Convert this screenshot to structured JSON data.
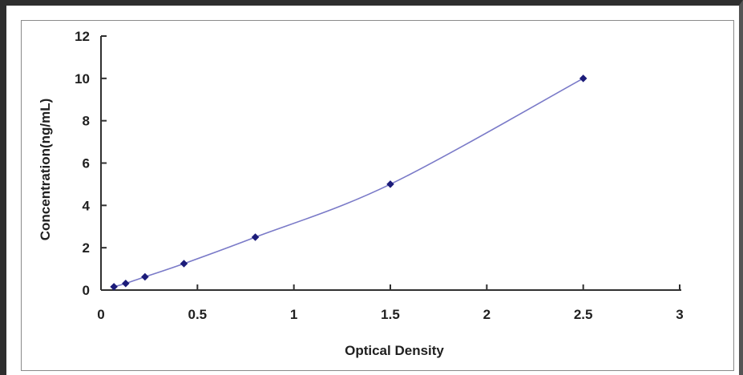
{
  "chart_data": {
    "type": "scatter",
    "title": "",
    "xlabel": "Optical Density",
    "ylabel": "Concentration(ng/mL)",
    "xlim": [
      0,
      3
    ],
    "ylim": [
      0,
      12
    ],
    "xticks": [
      "0",
      "0.5",
      "1",
      "1.5",
      "2",
      "2.5",
      "3"
    ],
    "yticks": [
      "0",
      "2",
      "4",
      "6",
      "8",
      "10",
      "12"
    ],
    "grid": false,
    "legend": "none",
    "series": [
      {
        "x": [
          0.067,
          0.128,
          0.228,
          0.43,
          0.8,
          1.5,
          2.5
        ],
        "y": [
          0.156,
          0.313,
          0.625,
          1.25,
          2.5,
          5,
          10
        ],
        "marker_color": "#1c1c7a",
        "line_color": "#7a7ac8",
        "curve": "fitted"
      }
    ]
  }
}
